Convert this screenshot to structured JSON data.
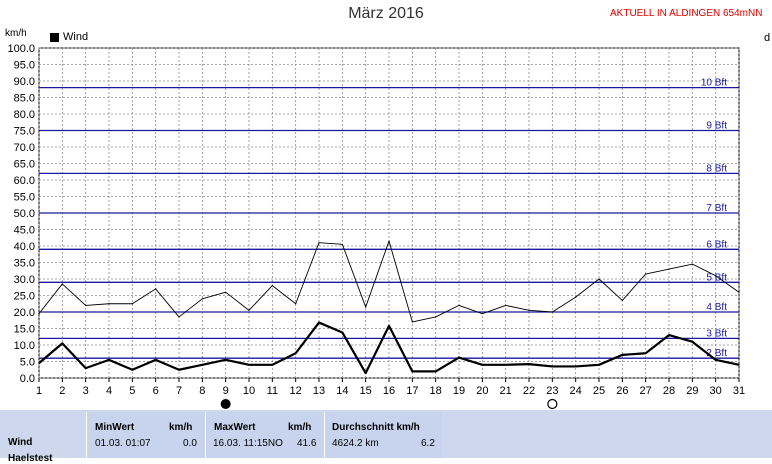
{
  "header": {
    "title": "März 2016",
    "live_label": "AKTUELL IN ALDINGEN 654mNN",
    "unit_label": "km/h",
    "right_fragment": "d"
  },
  "chart_data": {
    "type": "line",
    "x": [
      1,
      2,
      3,
      4,
      5,
      6,
      7,
      8,
      9,
      10,
      11,
      12,
      13,
      14,
      15,
      16,
      17,
      18,
      19,
      20,
      21,
      22,
      23,
      24,
      25,
      26,
      27,
      28,
      29,
      30,
      31
    ],
    "series": [
      {
        "name": "Wind",
        "color": "#000000",
        "width": 2.2,
        "values": [
          4.5,
          10.5,
          3.0,
          5.5,
          2.5,
          5.5,
          2.5,
          4.0,
          5.5,
          4.0,
          4.0,
          7.5,
          16.8,
          13.8,
          1.5,
          15.8,
          2.0,
          2.0,
          6.2,
          4.0,
          4.0,
          4.2,
          3.5,
          3.5,
          4.0,
          7.0,
          7.5,
          13.0,
          11.0,
          5.5,
          4.0
        ]
      },
      {
        "name": "",
        "color": "#000000",
        "width": 0.9,
        "values": [
          19.5,
          28.5,
          22.0,
          22.5,
          22.5,
          27.0,
          18.5,
          24.0,
          26.0,
          20.5,
          28.0,
          22.5,
          41.0,
          40.5,
          21.5,
          41.5,
          17.0,
          18.5,
          22.0,
          19.5,
          22.0,
          20.5,
          20.0,
          24.5,
          30.0,
          23.5,
          31.5,
          33.0,
          34.5,
          31.0,
          26.0
        ]
      }
    ],
    "ylim": [
      0,
      100
    ],
    "y_ticks": [
      "0.0",
      "5.0",
      "10.0",
      "15.0",
      "20.0",
      "25.0",
      "30.0",
      "35.0",
      "40.0",
      "45.0",
      "50.0",
      "55.0",
      "60.0",
      "65.0",
      "70.0",
      "75.0",
      "80.0",
      "85.0",
      "90.0",
      "95.0",
      "100.0"
    ],
    "x_ticks": [
      "1",
      "2",
      "3",
      "4",
      "5",
      "6",
      "7",
      "8",
      "9",
      "10",
      "11",
      "12",
      "13",
      "14",
      "15",
      "16",
      "17",
      "18",
      "19",
      "20",
      "21",
      "22",
      "23",
      "24",
      "25",
      "26",
      "27",
      "28",
      "29",
      "30",
      "31"
    ],
    "beaufort": [
      {
        "label": "2 Bft",
        "value": 6
      },
      {
        "label": "3 Bft",
        "value": 12
      },
      {
        "label": "4 Bft",
        "value": 20
      },
      {
        "label": "5 Bft",
        "value": 29
      },
      {
        "label": "6 Bft",
        "value": 39
      },
      {
        "label": "7 Bft",
        "value": 50
      },
      {
        "label": "8 Bft",
        "value": 62
      },
      {
        "label": "9 Bft",
        "value": 75
      },
      {
        "label": "10 Bft",
        "value": 88
      }
    ],
    "moon_phases": [
      {
        "day": 9,
        "phase": "new-moon"
      },
      {
        "day": 23,
        "phase": "full-moon"
      }
    ],
    "grid": true,
    "legend": "top-left"
  },
  "stats": {
    "row_label": "Wind",
    "row_label_2": "Haelstest",
    "min_header": "MinWert",
    "min_unit": "km/h",
    "min_date": "01.03.  01:07",
    "min_value": "0.0",
    "max_header": "MaxWert",
    "max_unit": "km/h",
    "max_date": "16.03.  11:15NO",
    "max_value": "41.6",
    "avg_header": "Durchschnitt km/h",
    "avg_km": "4624.2 km",
    "avg_value": "6.2"
  }
}
